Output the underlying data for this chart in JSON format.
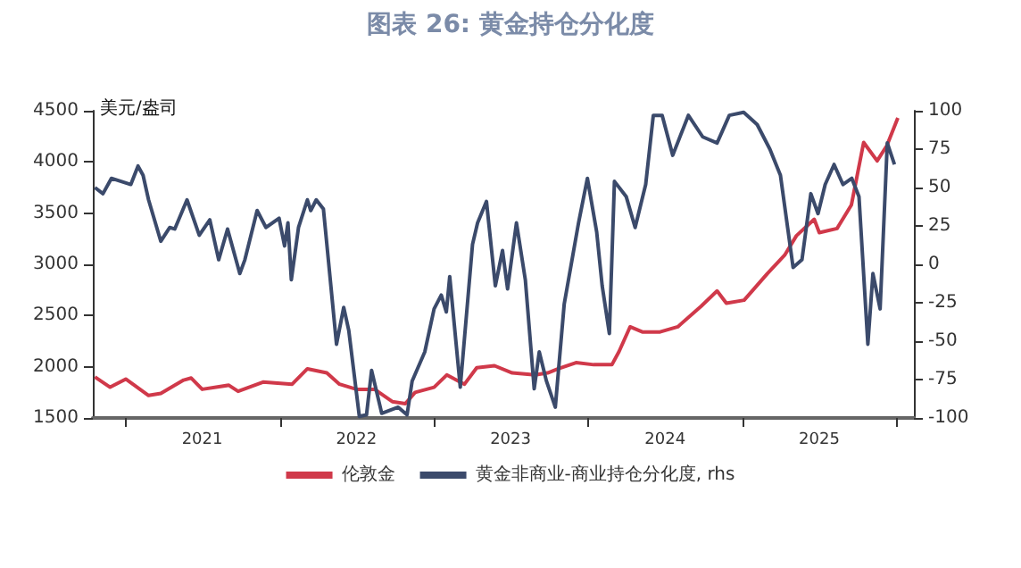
{
  "chart_data": {
    "type": "line",
    "title": "图表 26: 黄金持仓分化度",
    "ylabel": "美元/盎司",
    "xlim": [
      "2020-10-15",
      "2026-02-10"
    ],
    "xticks": [
      {
        "value": "2021-01-01",
        "label": null
      },
      {
        "value": "2021-07-01",
        "label": "2021"
      },
      {
        "value": "2022-01-01",
        "label": null
      },
      {
        "value": "2022-07-01",
        "label": "2022"
      },
      {
        "value": "2023-01-01",
        "label": null
      },
      {
        "value": "2023-07-01",
        "label": "2023"
      },
      {
        "value": "2024-01-01",
        "label": null
      },
      {
        "value": "2024-07-01",
        "label": "2024"
      },
      {
        "value": "2025-01-01",
        "label": null
      },
      {
        "value": "2025-07-01",
        "label": "2025"
      },
      {
        "value": "2026-01-01",
        "label": null
      }
    ],
    "ylim": [
      1500,
      4500
    ],
    "yticks": [
      1500,
      2000,
      2500,
      3000,
      3500,
      4000,
      4500
    ],
    "y2lim": [
      -100,
      100
    ],
    "y2ticks": [
      -100,
      -75,
      -50,
      -25,
      0,
      25,
      50,
      75,
      100
    ],
    "grid": false,
    "legend": "bottom",
    "marker": "none",
    "line_style": "solid",
    "series": [
      {
        "name": "伦敦金",
        "color": "#d0394a",
        "x": [
          "2020-10-20",
          "2020-11-25",
          "2021-01-01",
          "2021-02-24",
          "2021-03-25",
          "2021-05-18",
          "2021-06-05",
          "2021-07-01",
          "2021-09-02",
          "2021-09-24",
          "2021-11-22",
          "2022-01-30",
          "2022-03-07",
          "2022-04-22",
          "2022-05-22",
          "2022-07-01",
          "2022-08-13",
          "2022-09-24",
          "2022-10-25",
          "2022-11-17",
          "2023-01-01",
          "2023-01-31",
          "2023-03-14",
          "2023-04-12",
          "2023-05-24",
          "2023-07-05",
          "2023-08-28",
          "2023-09-27",
          "2023-10-22",
          "2023-12-03",
          "2024-01-14",
          "2024-02-26",
          "2024-03-14",
          "2024-04-09",
          "2024-05-08",
          "2024-06-19",
          "2024-07-31",
          "2024-09-24",
          "2024-11-01",
          "2024-11-23",
          "2025-01-04",
          "2025-02-28",
          "2025-04-10",
          "2025-05-08",
          "2025-06-19",
          "2025-07-01",
          "2025-08-12",
          "2025-09-15",
          "2025-10-14",
          "2025-11-15",
          "2025-12-08",
          "2026-01-03"
        ],
        "values": [
          1900,
          1800,
          1880,
          1720,
          1740,
          1870,
          1890,
          1780,
          1820,
          1760,
          1850,
          1830,
          1980,
          1940,
          1830,
          1780,
          1780,
          1660,
          1640,
          1750,
          1800,
          1920,
          1830,
          1990,
          2010,
          1940,
          1920,
          1940,
          1980,
          2040,
          2020,
          2020,
          2150,
          2390,
          2340,
          2340,
          2390,
          2590,
          2740,
          2620,
          2650,
          2910,
          3090,
          3280,
          3440,
          3310,
          3350,
          3580,
          4190,
          4010,
          4160,
          4430
        ]
      },
      {
        "name": "黄金非商业-商业持仓分化度, rhs",
        "color": "#3b4a6b",
        "axis": "y2",
        "x": [
          "2020-10-20",
          "2020-11-08",
          "2020-11-28",
          "2021-01-13",
          "2021-01-30",
          "2021-02-11",
          "2021-02-24",
          "2021-03-25",
          "2021-04-15",
          "2021-04-27",
          "2021-05-26",
          "2021-06-24",
          "2021-07-19",
          "2021-08-09",
          "2021-08-30",
          "2021-09-28",
          "2021-10-10",
          "2021-11-08",
          "2021-11-29",
          "2021-12-30",
          "2022-01-12",
          "2022-01-20",
          "2022-01-28",
          "2022-02-14",
          "2022-03-07",
          "2022-03-15",
          "2022-03-28",
          "2022-04-14",
          "2022-05-15",
          "2022-06-01",
          "2022-06-13",
          "2022-07-08",
          "2022-07-25",
          "2022-08-06",
          "2022-08-30",
          "2022-10-08",
          "2022-10-29",
          "2022-11-10",
          "2022-12-10",
          "2023-01-01",
          "2023-01-18",
          "2023-01-30",
          "2023-02-07",
          "2023-03-04",
          "2023-04-02",
          "2023-04-14",
          "2023-05-05",
          "2023-05-26",
          "2023-06-12",
          "2023-06-24",
          "2023-07-15",
          "2023-08-05",
          "2023-08-26",
          "2023-09-07",
          "2023-09-24",
          "2023-10-15",
          "2023-11-05",
          "2023-12-09",
          "2023-12-30",
          "2024-01-21",
          "2024-02-03",
          "2024-02-20",
          "2024-03-03",
          "2024-03-31",
          "2024-04-21",
          "2024-05-16",
          "2024-06-03",
          "2024-06-24",
          "2024-07-19",
          "2024-08-25",
          "2024-09-28",
          "2024-11-01",
          "2024-11-30",
          "2025-01-03",
          "2025-02-04",
          "2025-03-06",
          "2025-03-31",
          "2025-04-30",
          "2025-05-21",
          "2025-06-11",
          "2025-06-28",
          "2025-07-15",
          "2025-08-05",
          "2025-08-26",
          "2025-09-16",
          "2025-10-03",
          "2025-10-24",
          "2025-11-05",
          "2025-11-22",
          "2025-12-09",
          "2025-12-26"
        ],
        "values": [
          50,
          46,
          56,
          52,
          64,
          58,
          42,
          15,
          24,
          23,
          42,
          19,
          29,
          3,
          23,
          -6,
          3,
          35,
          24,
          30,
          12,
          27,
          -10,
          24,
          42,
          35,
          42,
          36,
          -52,
          -28,
          -43,
          -99,
          -98,
          -69,
          -97,
          -93,
          -98,
          -76,
          -57,
          -29,
          -20,
          -31,
          -8,
          -80,
          13,
          27,
          41,
          -14,
          9,
          -16,
          27,
          -10,
          -81,
          -57,
          -76,
          -93,
          -26,
          27,
          56,
          21,
          -14,
          -45,
          54,
          44,
          24,
          52,
          97,
          97,
          71,
          97,
          83,
          79,
          97,
          99,
          91,
          75,
          58,
          -2,
          3,
          46,
          33,
          52,
          65,
          52,
          56,
          44,
          -52,
          -6,
          -29,
          79,
          65
        ]
      }
    ]
  }
}
